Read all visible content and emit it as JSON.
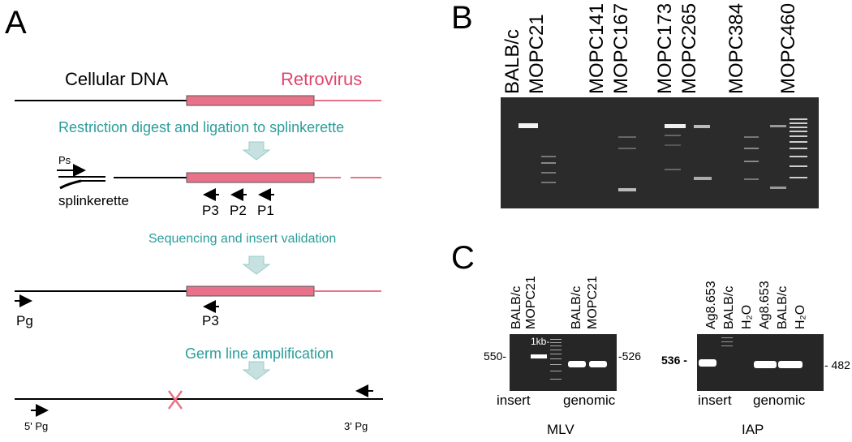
{
  "panelA": {
    "letter": "A",
    "cellular_dna": "Cellular DNA",
    "retrovirus": "Retrovirus",
    "step1": "Restriction digest and ligation to splinkerette",
    "ps": "Ps",
    "splinkerette": "splinkerette",
    "p3": "P3",
    "p2": "P2",
    "p1": "P1",
    "step2": "Sequencing and insert validation",
    "pg": "Pg",
    "p3b": "P3",
    "step3": "Germ line amplification",
    "pg5": "5' Pg",
    "pg3": "3' Pg",
    "colors": {
      "retro": "#e8728a",
      "teal": "#2a9d9b",
      "arrow": "#c7e0e0"
    }
  },
  "panelB": {
    "letter": "B",
    "lanes": [
      "BALB/c",
      "MOPC21",
      "MOPC141",
      "MOPC167",
      "MOPC173",
      "MOPC265",
      "MOPC384",
      "MOPC460"
    ]
  },
  "panelC": {
    "letter": "C",
    "mlv": {
      "lanes_left": [
        "BALB/c",
        "MOPC21"
      ],
      "lanes_right": [
        "BALB/c",
        "MOPC21"
      ],
      "marker": "1kb-",
      "size_left": "550-",
      "size_right": "-526",
      "group_left": "insert",
      "group_right": "genomic",
      "caption": "MLV"
    },
    "iap": {
      "lanes": [
        "Ag8.653",
        "BALB/c",
        "H₂O",
        "Ag8.653",
        "BALB/c",
        "H₂O"
      ],
      "size_left": "536 -",
      "size_right": "- 482",
      "group_left": "insert",
      "group_right": "genomic",
      "caption": "IAP"
    }
  }
}
